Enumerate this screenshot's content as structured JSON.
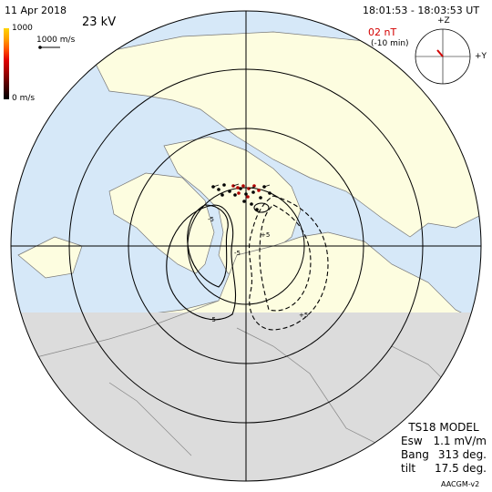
{
  "header": {
    "date": "11 Apr 2018",
    "potential": "23 kV",
    "time_range": "18:01:53 - 18:03:53 UT",
    "imf_strength": "02 nT",
    "imf_lag": "(-10 min)"
  },
  "velocity_scale": {
    "colorbar_max": "1000",
    "colorbar_min": "0 m/s",
    "vector_label": "1000 m/s"
  },
  "imf_dial": {
    "z_label": "+Z",
    "y_label": "+Y"
  },
  "contour_labels": [
    "-5",
    "-5",
    "-5",
    "+5",
    "+5"
  ],
  "model": {
    "name": "TS18 MODEL",
    "esw_label": "Esw",
    "esw_value": "1.1 mV/m",
    "bang_label": "Bang",
    "bang_value": "313 deg.",
    "tilt_label": "tilt",
    "tilt_value": "17.5 deg."
  },
  "footer": "AACGM-v2",
  "colors": {
    "ocean": "#d6e8f8",
    "land": "#fdfde0",
    "night": "#dcdcdc",
    "vector_high": "#b40000"
  }
}
